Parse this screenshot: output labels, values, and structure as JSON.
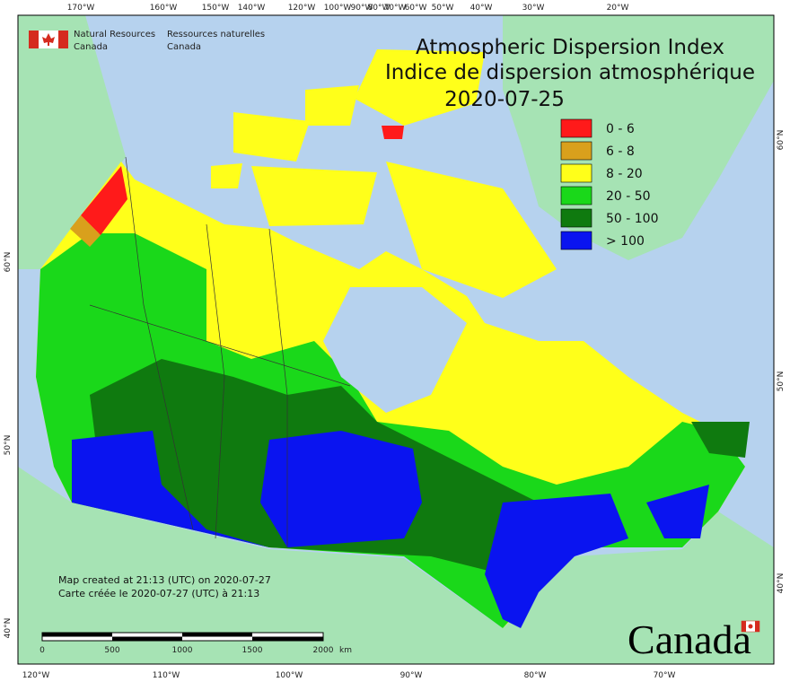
{
  "header": {
    "agency_en": "Natural Resources",
    "country_en": "Canada",
    "agency_fr": "Ressources naturelles",
    "country_fr": "Canada"
  },
  "title": {
    "en": "Atmospheric Dispersion Index",
    "fr": "Indice de dispersion atmosphérique",
    "date": "2020-07-25"
  },
  "legend": [
    {
      "label": "0 - 6",
      "color": "#ff1a1a"
    },
    {
      "label": "6 - 8",
      "color": "#d9a01c"
    },
    {
      "label": "8 - 20",
      "color": "#ffff1a"
    },
    {
      "label": "20 - 50",
      "color": "#1ad81a"
    },
    {
      "label": "50 - 100",
      "color": "#0f7a0f"
    },
    {
      "label": "> 100",
      "color": "#0a14f0"
    }
  ],
  "graticule": {
    "top": [
      "170°W",
      "160°W",
      "150°W",
      "140°W",
      "120°W",
      "100°W",
      "90°W",
      "80°W",
      "70°W",
      "60°W",
      "50°W",
      "40°W",
      "30°W",
      "20°W"
    ],
    "bottom": [
      "120°W",
      "110°W",
      "100°W",
      "90°W",
      "80°W",
      "70°W"
    ],
    "left": [
      "60°N",
      "50°N",
      "40°N"
    ],
    "right": [
      "60°N",
      "50°N",
      "40°N"
    ]
  },
  "notes": {
    "en": "Map created at 21:13 (UTC) on 2020-07-27",
    "fr": "Carte créée le 2020-07-27 (UTC) à 21:13"
  },
  "scale_bar": {
    "labels": [
      "0",
      "500",
      "1000",
      "1500",
      "2000"
    ],
    "unit": "km"
  },
  "wordmark": "Canada"
}
